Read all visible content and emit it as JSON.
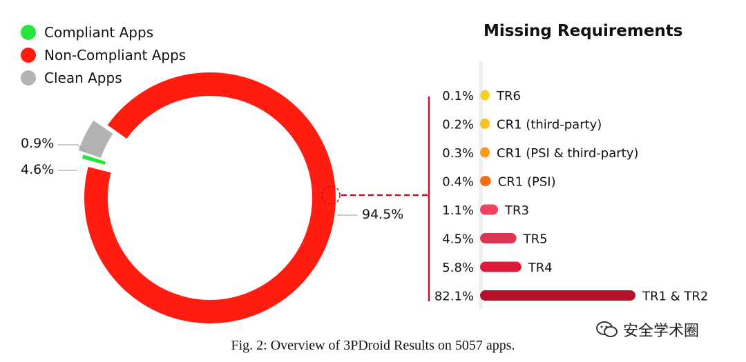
{
  "chart_data": [
    {
      "type": "pie",
      "legend": [
        {
          "label": "Compliant Apps",
          "color": "#27e53a"
        },
        {
          "label": "Non-Compliant Apps",
          "color": "#ff1c10"
        },
        {
          "label": "Clean Apps",
          "color": "#b3b3b3"
        }
      ],
      "slices": [
        {
          "name": "Compliant Apps",
          "value": 0.9,
          "label": "0.9%",
          "color": "#27e53a"
        },
        {
          "name": "Clean Apps",
          "value": 4.6,
          "label": "4.6%",
          "color": "#b3b3b3"
        },
        {
          "name": "Non-Compliant Apps",
          "value": 94.5,
          "label": "94.5%",
          "color": "#ff1c10"
        }
      ],
      "legend_position": "top-left"
    },
    {
      "type": "bar",
      "orientation": "horizontal",
      "title": "Missing Requirements",
      "categories": [
        "TR6",
        "CR1 (third-party)",
        "CR1 (PSI & third-party)",
        "CR1 (PSI)",
        "TR3",
        "TR5",
        "TR4",
        "TR1 & TR2"
      ],
      "values": [
        0.1,
        0.2,
        0.3,
        0.4,
        1.1,
        4.5,
        5.8,
        82.1
      ],
      "value_labels": [
        "0.1%",
        "0.2%",
        "0.3%",
        "0.4%",
        "1.1%",
        "4.5%",
        "5.8%",
        "82.1%"
      ],
      "colors": [
        "#f2d22a",
        "#f8c21f",
        "#f99a20",
        "#f56d14",
        "#f0425e",
        "#d93652",
        "#dc1a3a",
        "#b5122a"
      ]
    }
  ],
  "caption": "Fig. 2: Overview of 3PDroid Results on 5057 apps.",
  "watermark": "安全学术圈"
}
